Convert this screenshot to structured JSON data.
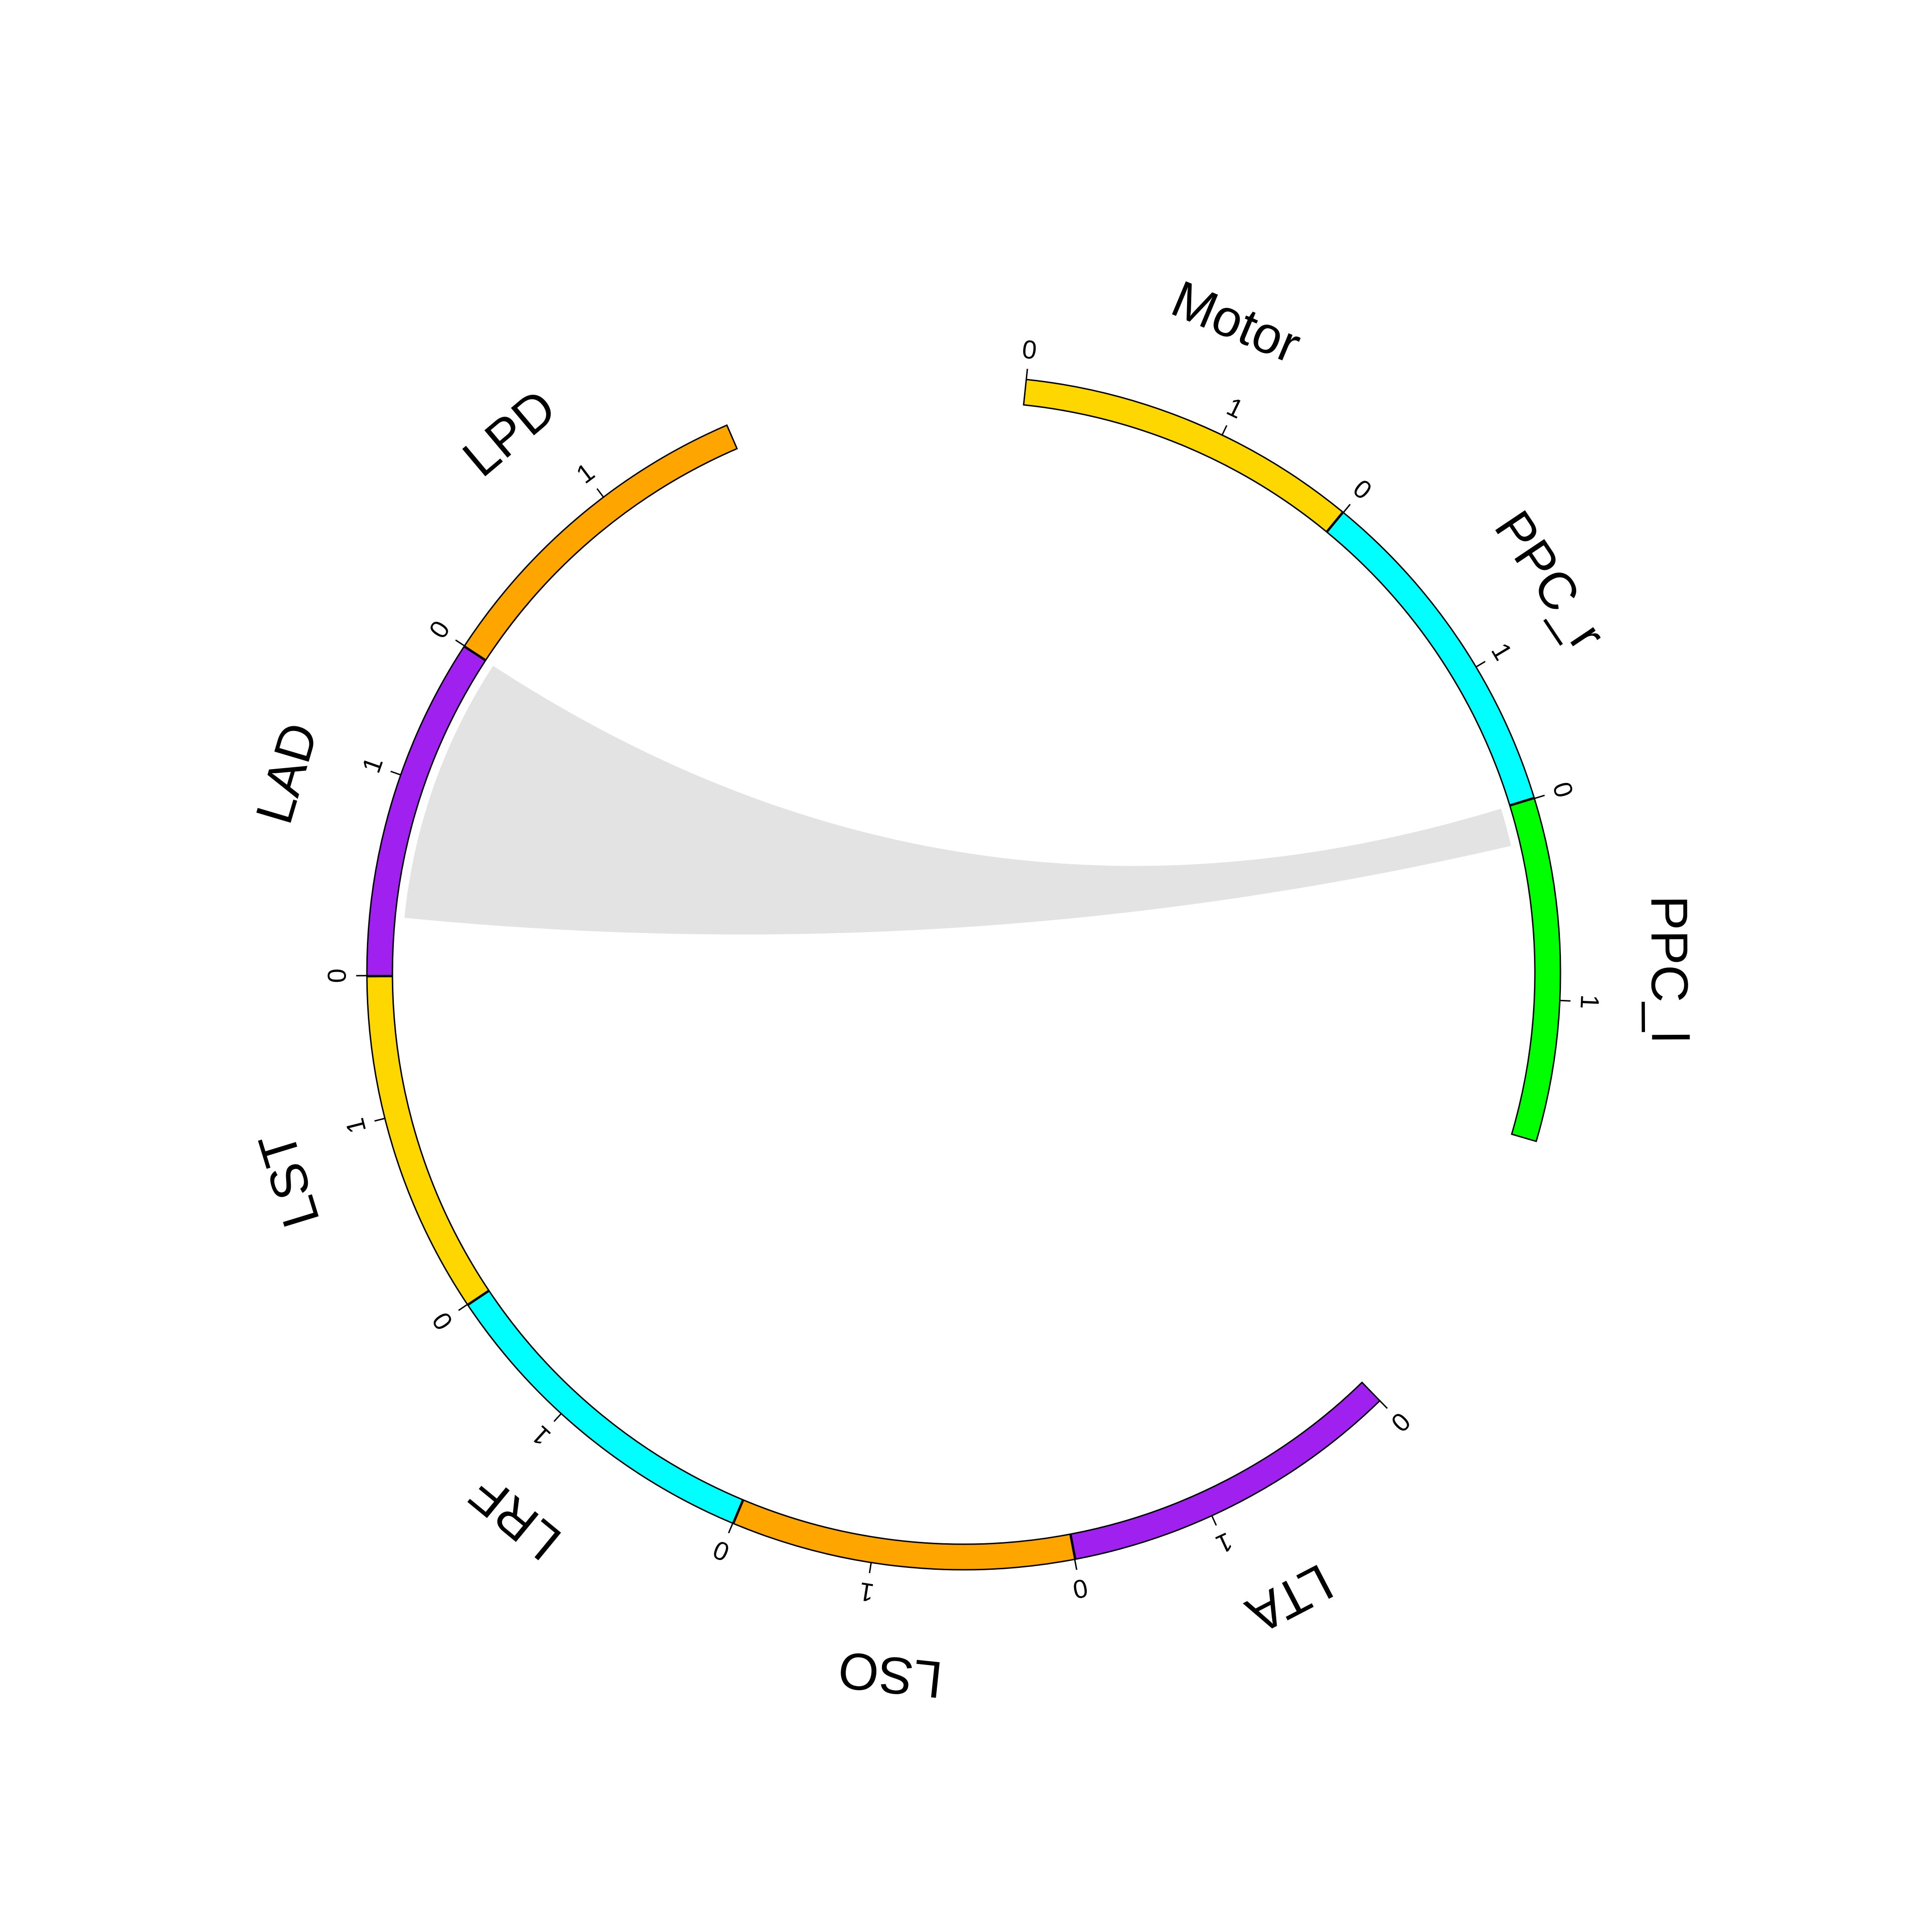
{
  "chart_data": {
    "type": "chord",
    "title": "",
    "sectors": [
      {
        "name": "PPC_l",
        "color": "#00FF00",
        "range": [
          0,
          1.7
        ],
        "ticks": [
          0,
          1
        ]
      },
      {
        "name": "LTA",
        "color": "#A020F0",
        "range": [
          0,
          1.7
        ],
        "ticks": [
          0,
          1
        ]
      },
      {
        "name": "LSO",
        "color": "#FFA500",
        "range": [
          0,
          1.7
        ],
        "ticks": [
          0,
          1
        ]
      },
      {
        "name": "LRF",
        "color": "#00FFFF",
        "range": [
          0,
          1.7
        ],
        "ticks": [
          0,
          1
        ]
      },
      {
        "name": "LST",
        "color": "#FFD700",
        "range": [
          0,
          1.7
        ],
        "ticks": [
          0,
          1
        ]
      },
      {
        "name": "LAD",
        "color": "#A020F0",
        "range": [
          0,
          1.7
        ],
        "ticks": [
          0,
          1
        ]
      },
      {
        "name": "LPD",
        "color": "#FFA500",
        "range": [
          0,
          1.7
        ],
        "ticks": [
          0,
          1
        ]
      },
      {
        "name": "Motor",
        "color": "#FFD700",
        "range": [
          0,
          1.7
        ],
        "ticks": [
          0,
          1
        ]
      },
      {
        "name": "PPC_r",
        "color": "#00FFFF",
        "range": [
          0,
          1.7
        ],
        "ticks": [
          0,
          1
        ]
      }
    ],
    "gaps_after": [
      "PPC_l",
      "LPD"
    ],
    "links": [
      {
        "source": "PPC_l",
        "source_range": [
          0,
          0.2
        ],
        "target": "LAD",
        "target_range": [
          0.3,
          1.7
        ],
        "color": "#E3E3E3"
      }
    ]
  }
}
